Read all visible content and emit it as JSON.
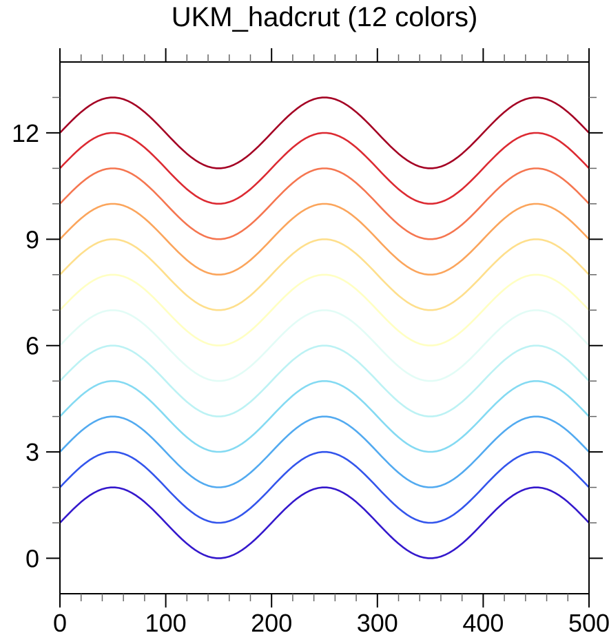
{
  "style": {
    "background": "#ffffff",
    "axis_color": "#000000",
    "minor_tick_color": "#666666",
    "text_color": "#000000"
  },
  "chart_data": {
    "type": "line",
    "title": "UKM_hadcrut (12 colors)",
    "xlabel": "",
    "ylabel": "",
    "xlim": [
      0,
      500
    ],
    "ylim": [
      -1,
      14
    ],
    "x_major_ticks": [
      0,
      100,
      200,
      300,
      400,
      500
    ],
    "x_tick_labels": [
      "0",
      "100",
      "200",
      "300",
      "400",
      "500"
    ],
    "x_minor_step": 20,
    "y_major_ticks": [
      0,
      3,
      6,
      9,
      12
    ],
    "y_tick_labels": [
      "0",
      "3",
      "6",
      "9",
      "12"
    ],
    "y_minor_step": 1,
    "grid": false,
    "legend_position": "none",
    "wave": {
      "amplitude": 1,
      "period": 200,
      "num_colors": 12
    },
    "x_samples": [
      0,
      25,
      50,
      75,
      100,
      125,
      150,
      175,
      200,
      225,
      250,
      275,
      300,
      325,
      350,
      375,
      400,
      425,
      450,
      475,
      500
    ],
    "series": [
      {
        "name": "line 1",
        "offset": 1,
        "color": "#3418CC",
        "values": [
          1,
          1.71,
          2,
          1.71,
          1,
          0.29,
          0,
          0.29,
          1,
          1.71,
          2,
          1.71,
          1,
          0.29,
          0,
          0.29,
          1,
          1.71,
          2,
          1.71,
          1
        ]
      },
      {
        "name": "line 2",
        "offset": 2,
        "color": "#3355EC",
        "values": [
          2,
          2.71,
          3,
          2.71,
          2,
          1.29,
          1,
          1.29,
          2,
          2.71,
          3,
          2.71,
          2,
          1.29,
          1,
          1.29,
          2,
          2.71,
          3,
          2.71,
          2
        ]
      },
      {
        "name": "line 3",
        "offset": 3,
        "color": "#52AAF0",
        "values": [
          3,
          3.71,
          4,
          3.71,
          3,
          2.29,
          2,
          2.29,
          3,
          3.71,
          4,
          3.71,
          3,
          2.29,
          2,
          2.29,
          3,
          3.71,
          4,
          3.71,
          3
        ]
      },
      {
        "name": "line 4",
        "offset": 4,
        "color": "#84DAF2",
        "values": [
          4,
          4.71,
          5,
          4.71,
          4,
          3.29,
          3,
          3.29,
          4,
          4.71,
          5,
          4.71,
          4,
          3.29,
          3,
          3.29,
          4,
          4.71,
          5,
          4.71,
          4
        ]
      },
      {
        "name": "line 5",
        "offset": 5,
        "color": "#BCF2F4",
        "values": [
          5,
          5.71,
          6,
          5.71,
          5,
          4.29,
          4,
          4.29,
          5,
          5.71,
          6,
          5.71,
          5,
          4.29,
          4,
          4.29,
          5,
          5.71,
          6,
          5.71,
          5
        ]
      },
      {
        "name": "line 6",
        "offset": 6,
        "color": "#E2FCF6",
        "values": [
          6,
          6.71,
          7,
          6.71,
          6,
          5.29,
          5,
          5.29,
          6,
          6.71,
          7,
          6.71,
          6,
          5.29,
          5,
          5.29,
          6,
          6.71,
          7,
          6.71,
          6
        ]
      },
      {
        "name": "line 7",
        "offset": 7,
        "color": "#FFFFC2",
        "values": [
          7,
          7.71,
          8,
          7.71,
          7,
          6.29,
          6,
          6.29,
          7,
          7.71,
          8,
          7.71,
          7,
          6.29,
          6,
          6.29,
          7,
          7.71,
          8,
          7.71,
          7
        ]
      },
      {
        "name": "line 8",
        "offset": 8,
        "color": "#FEDF8C",
        "values": [
          8,
          8.71,
          9,
          8.71,
          8,
          7.29,
          7,
          7.29,
          8,
          8.71,
          9,
          8.71,
          8,
          7.29,
          7,
          7.29,
          8,
          8.71,
          9,
          8.71,
          8
        ]
      },
      {
        "name": "line 9",
        "offset": 9,
        "color": "#FBA55C",
        "values": [
          9,
          9.71,
          10,
          9.71,
          9,
          8.29,
          8,
          8.29,
          9,
          9.71,
          10,
          9.71,
          9,
          8.29,
          8,
          8.29,
          9,
          9.71,
          10,
          9.71,
          9
        ]
      },
      {
        "name": "line 10",
        "offset": 10,
        "color": "#F57650",
        "values": [
          10,
          10.71,
          11,
          10.71,
          10,
          9.29,
          9,
          9.29,
          10,
          10.71,
          11,
          10.71,
          10,
          9.29,
          9,
          9.29,
          10,
          10.71,
          11,
          10.71,
          10
        ]
      },
      {
        "name": "line 11",
        "offset": 11,
        "color": "#DC2A32",
        "values": [
          11,
          11.71,
          12,
          11.71,
          11,
          10.29,
          10,
          10.29,
          11,
          11.71,
          12,
          11.71,
          11,
          10.29,
          10,
          10.29,
          11,
          11.71,
          12,
          11.71,
          11
        ]
      },
      {
        "name": "line 12",
        "offset": 12,
        "color": "#A40023",
        "values": [
          12,
          12.71,
          13,
          12.71,
          12,
          11.29,
          11,
          11.29,
          12,
          12.71,
          13,
          12.71,
          12,
          11.29,
          11,
          11.29,
          12,
          12.71,
          13,
          12.71,
          12
        ]
      }
    ]
  }
}
